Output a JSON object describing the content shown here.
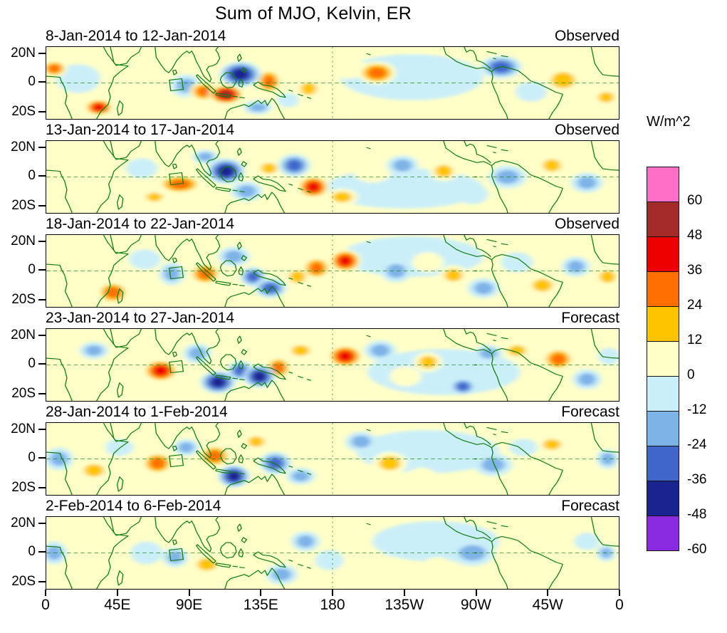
{
  "chart_data": {
    "type": "heatmap",
    "subtype": "filled-contour longitude-latitude anomaly maps, 6 stacked time panels",
    "title": "Sum of MJO, Kelvin, ER",
    "units": "W/m^2",
    "coastline_color": "#0e7d10",
    "lon_range_deg_east": [
      0,
      360
    ],
    "lat_range_deg": [
      -25,
      25
    ],
    "levels": [
      -60,
      -48,
      -36,
      -24,
      -12,
      0,
      12,
      24,
      36,
      48,
      60
    ],
    "level_labels": [
      "60",
      "48",
      "36",
      "24",
      "12",
      "0",
      "-12",
      "-24",
      "-36",
      "-48",
      "-60"
    ],
    "palette": [
      "#FF6EC7",
      "#A52A2A",
      "#EE0000",
      "#FF6E00",
      "#FFC400",
      "#FFFFC8",
      "#CBEFF9",
      "#7EB3E8",
      "#4066CC",
      "#1A2490",
      "#8A2BE2"
    ],
    "legend_position": "right colorbar",
    "grid": "dashed equator line and dashed 180-degree meridian per panel",
    "x_ticks": [
      "0",
      "45E",
      "90E",
      "135E",
      "180",
      "135W",
      "90W",
      "45W",
      "0"
    ],
    "y_ticks": [
      "20N",
      "0",
      "20S"
    ],
    "anomaly_center_format": "[lon_deg_east, lat_deg, peak_wm2, rx_deg, ry_deg] (estimated from figure)",
    "panels": [
      {
        "date_range": "8-Jan-2014 to 12-Jan-2014",
        "source": "Observed",
        "anomaly_centers": [
          [
            5,
            10,
            30,
            8,
            6
          ],
          [
            33,
            -17,
            46,
            9,
            6
          ],
          [
            20,
            3,
            -8,
            14,
            10
          ],
          [
            50,
            -5,
            14,
            12,
            9
          ],
          [
            65,
            6,
            16,
            7,
            5
          ],
          [
            88,
            -2,
            -26,
            10,
            8
          ],
          [
            122,
            6,
            -46,
            13,
            9
          ],
          [
            113,
            -8,
            56,
            11,
            7
          ],
          [
            99,
            -6,
            30,
            9,
            7
          ],
          [
            140,
            1,
            34,
            8,
            9
          ],
          [
            133,
            -17,
            -20,
            9,
            5
          ],
          [
            152,
            -12,
            -16,
            7,
            5
          ],
          [
            165,
            -4,
            26,
            8,
            7
          ],
          [
            190,
            10,
            14,
            12,
            7
          ],
          [
            208,
            7,
            30,
            12,
            8
          ],
          [
            230,
            4,
            -6,
            45,
            16
          ],
          [
            252,
            2,
            -12,
            12,
            8
          ],
          [
            270,
            -14,
            16,
            10,
            6
          ],
          [
            286,
            11,
            -40,
            13,
            8
          ],
          [
            305,
            -6,
            -14,
            10,
            7
          ],
          [
            325,
            2,
            28,
            12,
            9
          ],
          [
            352,
            -10,
            18,
            8,
            6
          ]
        ]
      },
      {
        "date_range": "13-Jan-2014 to 17-Jan-2014",
        "source": "Observed",
        "anomaly_centers": [
          [
            12,
            -4,
            16,
            12,
            9
          ],
          [
            38,
            -15,
            16,
            8,
            6
          ],
          [
            60,
            6,
            -16,
            10,
            7
          ],
          [
            84,
            -5,
            40,
            14,
            7
          ],
          [
            68,
            -14,
            18,
            8,
            5
          ],
          [
            113,
            4,
            -46,
            12,
            9
          ],
          [
            100,
            14,
            -18,
            8,
            5
          ],
          [
            126,
            -10,
            -24,
            10,
            7
          ],
          [
            140,
            6,
            18,
            8,
            6
          ],
          [
            156,
            8,
            -30,
            10,
            8
          ],
          [
            168,
            -7,
            42,
            10,
            8
          ],
          [
            186,
            -14,
            18,
            10,
            6
          ],
          [
            205,
            4,
            14,
            12,
            8
          ],
          [
            224,
            8,
            -20,
            10,
            7
          ],
          [
            225,
            -8,
            -6,
            50,
            14
          ],
          [
            250,
            4,
            24,
            9,
            7
          ],
          [
            268,
            -12,
            -14,
            10,
            7
          ],
          [
            290,
            0,
            -20,
            12,
            8
          ],
          [
            318,
            8,
            28,
            9,
            7
          ],
          [
            340,
            -4,
            -22,
            10,
            7
          ],
          [
            354,
            8,
            14,
            6,
            5
          ]
        ]
      },
      {
        "date_range": "18-Jan-2014 to 22-Jan-2014",
        "source": "Observed",
        "anomaly_centers": [
          [
            10,
            6,
            16,
            10,
            7
          ],
          [
            42,
            -15,
            40,
            10,
            8
          ],
          [
            25,
            -4,
            14,
            8,
            6
          ],
          [
            62,
            8,
            -14,
            10,
            7
          ],
          [
            79,
            -2,
            -20,
            8,
            8
          ],
          [
            100,
            -2,
            30,
            10,
            8
          ],
          [
            90,
            12,
            16,
            8,
            5
          ],
          [
            118,
            10,
            -18,
            10,
            7
          ],
          [
            130,
            -4,
            -30,
            8,
            7
          ],
          [
            141,
            -12,
            -40,
            10,
            7
          ],
          [
            158,
            -4,
            24,
            8,
            7
          ],
          [
            170,
            2,
            38,
            9,
            8
          ],
          [
            188,
            7,
            44,
            10,
            8
          ],
          [
            205,
            -10,
            16,
            10,
            7
          ],
          [
            220,
            0,
            -22,
            10,
            8
          ],
          [
            230,
            10,
            -6,
            45,
            14
          ],
          [
            240,
            6,
            14,
            10,
            7
          ],
          [
            256,
            -3,
            20,
            9,
            7
          ],
          [
            275,
            -12,
            -18,
            10,
            7
          ],
          [
            296,
            6,
            -16,
            10,
            7
          ],
          [
            312,
            -10,
            24,
            10,
            7
          ],
          [
            333,
            3,
            -20,
            9,
            7
          ],
          [
            353,
            -4,
            28,
            8,
            7
          ]
        ]
      },
      {
        "date_range": "23-Jan-2014 to 27-Jan-2014",
        "source": "Forecast",
        "anomaly_centers": [
          [
            12,
            3,
            16,
            10,
            7
          ],
          [
            30,
            10,
            -18,
            9,
            6
          ],
          [
            50,
            -10,
            14,
            9,
            6
          ],
          [
            72,
            -4,
            46,
            11,
            8
          ],
          [
            95,
            8,
            -20,
            9,
            7
          ],
          [
            108,
            -12,
            -50,
            11,
            8
          ],
          [
            122,
            -4,
            -30,
            8,
            7
          ],
          [
            134,
            -8,
            -48,
            10,
            8
          ],
          [
            146,
            -2,
            40,
            8,
            8
          ],
          [
            160,
            10,
            18,
            9,
            6
          ],
          [
            172,
            -12,
            16,
            8,
            6
          ],
          [
            188,
            6,
            46,
            11,
            8
          ],
          [
            210,
            10,
            -26,
            10,
            7
          ],
          [
            226,
            -8,
            14,
            10,
            7
          ],
          [
            240,
            2,
            20,
            9,
            7
          ],
          [
            250,
            -5,
            -6,
            48,
            16
          ],
          [
            262,
            -15,
            -36,
            8,
            6
          ],
          [
            278,
            8,
            -18,
            9,
            6
          ],
          [
            296,
            10,
            22,
            9,
            6
          ],
          [
            322,
            4,
            30,
            10,
            8
          ],
          [
            340,
            -10,
            -24,
            9,
            7
          ],
          [
            354,
            6,
            -14,
            7,
            6
          ]
        ]
      },
      {
        "date_range": "28-Jan-2014 to 1-Feb-2014",
        "source": "Forecast",
        "anomaly_centers": [
          [
            8,
            0,
            -22,
            9,
            8
          ],
          [
            30,
            -8,
            18,
            10,
            7
          ],
          [
            46,
            8,
            -14,
            9,
            6
          ],
          [
            70,
            -3,
            32,
            10,
            8
          ],
          [
            88,
            8,
            -18,
            8,
            6
          ],
          [
            106,
            2,
            40,
            10,
            8
          ],
          [
            118,
            -12,
            -46,
            10,
            8
          ],
          [
            132,
            12,
            24,
            8,
            6
          ],
          [
            144,
            -3,
            -36,
            10,
            8
          ],
          [
            160,
            -12,
            -20,
            9,
            6
          ],
          [
            176,
            4,
            16,
            10,
            7
          ],
          [
            198,
            12,
            -28,
            10,
            7
          ],
          [
            216,
            -3,
            20,
            11,
            8
          ],
          [
            236,
            -12,
            14,
            9,
            6
          ],
          [
            240,
            5,
            -6,
            45,
            15
          ],
          [
            258,
            6,
            -14,
            12,
            8
          ],
          [
            281,
            -4,
            -22,
            12,
            8
          ],
          [
            300,
            8,
            -14,
            9,
            6
          ],
          [
            318,
            10,
            22,
            9,
            6
          ],
          [
            338,
            -8,
            14,
            9,
            6
          ],
          [
            353,
            0,
            -20,
            7,
            7
          ]
        ]
      },
      {
        "date_range": "2-Feb-2014 to 6-Feb-2014",
        "source": "Forecast",
        "anomaly_centers": [
          [
            5,
            0,
            -18,
            8,
            8
          ],
          [
            28,
            -5,
            14,
            10,
            8
          ],
          [
            46,
            6,
            12,
            8,
            6
          ],
          [
            63,
            0,
            -14,
            10,
            8
          ],
          [
            81,
            -3,
            -18,
            8,
            7
          ],
          [
            101,
            -8,
            26,
            10,
            7
          ],
          [
            118,
            8,
            16,
            9,
            6
          ],
          [
            131,
            -2,
            14,
            8,
            6
          ],
          [
            148,
            -15,
            -28,
            10,
            7
          ],
          [
            163,
            8,
            -18,
            9,
            7
          ],
          [
            178,
            -5,
            -14,
            9,
            7
          ],
          [
            198,
            -8,
            16,
            11,
            8
          ],
          [
            221,
            5,
            -10,
            12,
            8
          ],
          [
            245,
            8,
            -6,
            40,
            14
          ],
          [
            246,
            -10,
            12,
            10,
            7
          ],
          [
            268,
            0,
            -18,
            14,
            9
          ],
          [
            296,
            5,
            12,
            9,
            6
          ],
          [
            318,
            -5,
            14,
            9,
            7
          ],
          [
            331,
            -13,
            16,
            8,
            6
          ],
          [
            340,
            8,
            -12,
            8,
            6
          ],
          [
            352,
            0,
            -26,
            6,
            6
          ]
        ]
      }
    ]
  }
}
